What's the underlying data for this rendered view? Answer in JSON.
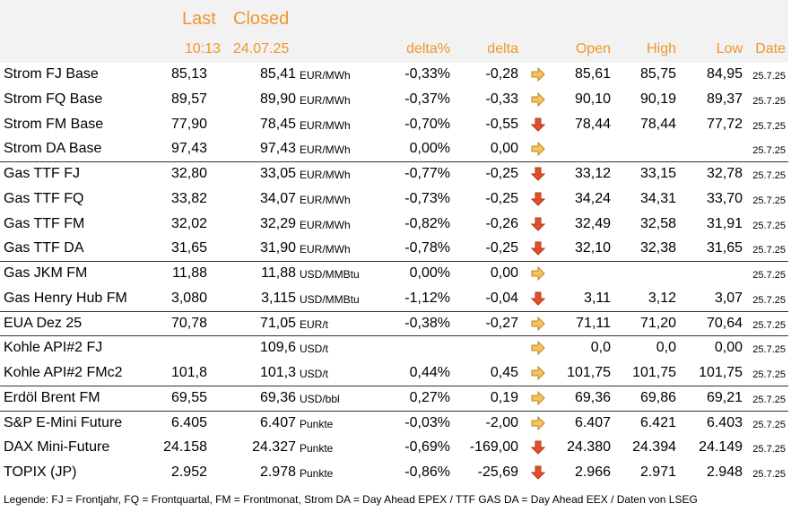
{
  "header": {
    "last": "Last",
    "closed": "Closed",
    "last_time": "10:13",
    "closed_date": "24.07.25",
    "delta_pct": "delta%",
    "delta": "delta",
    "open": "Open",
    "high": "High",
    "low": "Low",
    "date": "Date"
  },
  "groups": [
    [
      {
        "name": "Strom FJ Base",
        "last": "85,13",
        "closed": "85,41",
        "unit": "EUR/MWh",
        "delta_pct": "-0,33%",
        "delta": "-0,28",
        "trend": "flat",
        "open": "85,61",
        "high": "85,75",
        "low": "84,95",
        "date": "25.7.25"
      },
      {
        "name": "Strom FQ Base",
        "last": "89,57",
        "closed": "89,90",
        "unit": "EUR/MWh",
        "delta_pct": "-0,37%",
        "delta": "-0,33",
        "trend": "flat",
        "open": "90,10",
        "high": "90,19",
        "low": "89,37",
        "date": "25.7.25"
      },
      {
        "name": "Strom FM Base",
        "last": "77,90",
        "closed": "78,45",
        "unit": "EUR/MWh",
        "delta_pct": "-0,70%",
        "delta": "-0,55",
        "trend": "down",
        "open": "78,44",
        "high": "78,44",
        "low": "77,72",
        "date": "25.7.25"
      },
      {
        "name": "Strom DA Base",
        "last": "97,43",
        "closed": "97,43",
        "unit": "EUR/MWh",
        "delta_pct": "0,00%",
        "delta": "0,00",
        "trend": "flat",
        "open": null,
        "high": null,
        "low": null,
        "date": "25.7.25"
      }
    ],
    [
      {
        "name": "Gas TTF FJ",
        "last": "32,80",
        "closed": "33,05",
        "unit": "EUR/MWh",
        "delta_pct": "-0,77%",
        "delta": "-0,25",
        "trend": "down",
        "open": "33,12",
        "high": "33,15",
        "low": "32,78",
        "date": "25.7.25"
      },
      {
        "name": "Gas TTF FQ",
        "last": "33,82",
        "closed": "34,07",
        "unit": "EUR/MWh",
        "delta_pct": "-0,73%",
        "delta": "-0,25",
        "trend": "down",
        "open": "34,24",
        "high": "34,31",
        "low": "33,70",
        "date": "25.7.25"
      },
      {
        "name": "Gas TTF FM",
        "last": "32,02",
        "closed": "32,29",
        "unit": "EUR/MWh",
        "delta_pct": "-0,82%",
        "delta": "-0,26",
        "trend": "down",
        "open": "32,49",
        "high": "32,58",
        "low": "31,91",
        "date": "25.7.25"
      },
      {
        "name": "Gas TTF DA",
        "last": "31,65",
        "closed": "31,90",
        "unit": "EUR/MWh",
        "delta_pct": "-0,78%",
        "delta": "-0,25",
        "trend": "down",
        "open": "32,10",
        "high": "32,38",
        "low": "31,65",
        "date": "25.7.25"
      }
    ],
    [
      {
        "name": "Gas JKM FM",
        "last": "11,88",
        "closed": "11,88",
        "unit": "USD/MMBtu",
        "delta_pct": "0,00%",
        "delta": "0,00",
        "trend": "flat",
        "open": null,
        "high": null,
        "low": null,
        "date": "25.7.25"
      },
      {
        "name": "Gas Henry Hub FM",
        "last": "3,080",
        "closed": "3,115",
        "unit": "USD/MMBtu",
        "delta_pct": "-1,12%",
        "delta": "-0,04",
        "trend": "down",
        "open": "3,11",
        "high": "3,12",
        "low": "3,07",
        "date": "25.7.25"
      }
    ],
    [
      {
        "name": "EUA Dez 25",
        "last": "70,78",
        "closed": "71,05",
        "unit": "EUR/t",
        "delta_pct": "-0,38%",
        "delta": "-0,27",
        "trend": "flat",
        "open": "71,11",
        "high": "71,20",
        "low": "70,64",
        "date": "25.7.25"
      }
    ],
    [
      {
        "name": "Kohle API#2 FJ",
        "last": null,
        "closed": "109,6",
        "unit": "USD/t",
        "delta_pct": null,
        "delta": null,
        "trend": "flat",
        "open": "0,0",
        "high": "0,0",
        "low": "0,00",
        "date": "25.7.25"
      },
      {
        "name": "Kohle API#2 FMc2",
        "last": "101,8",
        "closed": "101,3",
        "unit": "USD/t",
        "delta_pct": "0,44%",
        "delta": "0,45",
        "trend": "flat",
        "open": "101,75",
        "high": "101,75",
        "low": "101,75",
        "date": "25.7.25"
      }
    ],
    [
      {
        "name": "Erdöl Brent FM",
        "last": "69,55",
        "closed": "69,36",
        "unit": "USD/bbl",
        "delta_pct": "0,27%",
        "delta": "0,19",
        "trend": "flat",
        "open": "69,36",
        "high": "69,86",
        "low": "69,21",
        "date": "25.7.25"
      }
    ],
    [
      {
        "name": "S&P E-Mini Future",
        "last": "6.405",
        "closed": "6.407",
        "unit": "Punkte",
        "delta_pct": "-0,03%",
        "delta": "-2,00",
        "trend": "flat",
        "open": "6.407",
        "high": "6.421",
        "low": "6.403",
        "date": "25.7.25"
      },
      {
        "name": "DAX Mini-Future",
        "last": "24.158",
        "closed": "24.327",
        "unit": "Punkte",
        "delta_pct": "-0,69%",
        "delta": "-169,00",
        "trend": "down",
        "open": "24.380",
        "high": "24.394",
        "low": "24.149",
        "date": "25.7.25"
      },
      {
        "name": "TOPIX (JP)",
        "last": "2.952",
        "closed": "2.978",
        "unit": "Punkte",
        "delta_pct": "-0,86%",
        "delta": "-25,69",
        "trend": "down",
        "open": "2.966",
        "high": "2.971",
        "low": "2.948",
        "date": "25.7.25"
      }
    ]
  ],
  "legend": "Legende: FJ = Frontjahr, FQ = Frontquartal, FM = Frontmonat, Strom DA = Day Ahead EPEX / TTF GAS DA = Day Ahead EEX / Daten von LSEG"
}
